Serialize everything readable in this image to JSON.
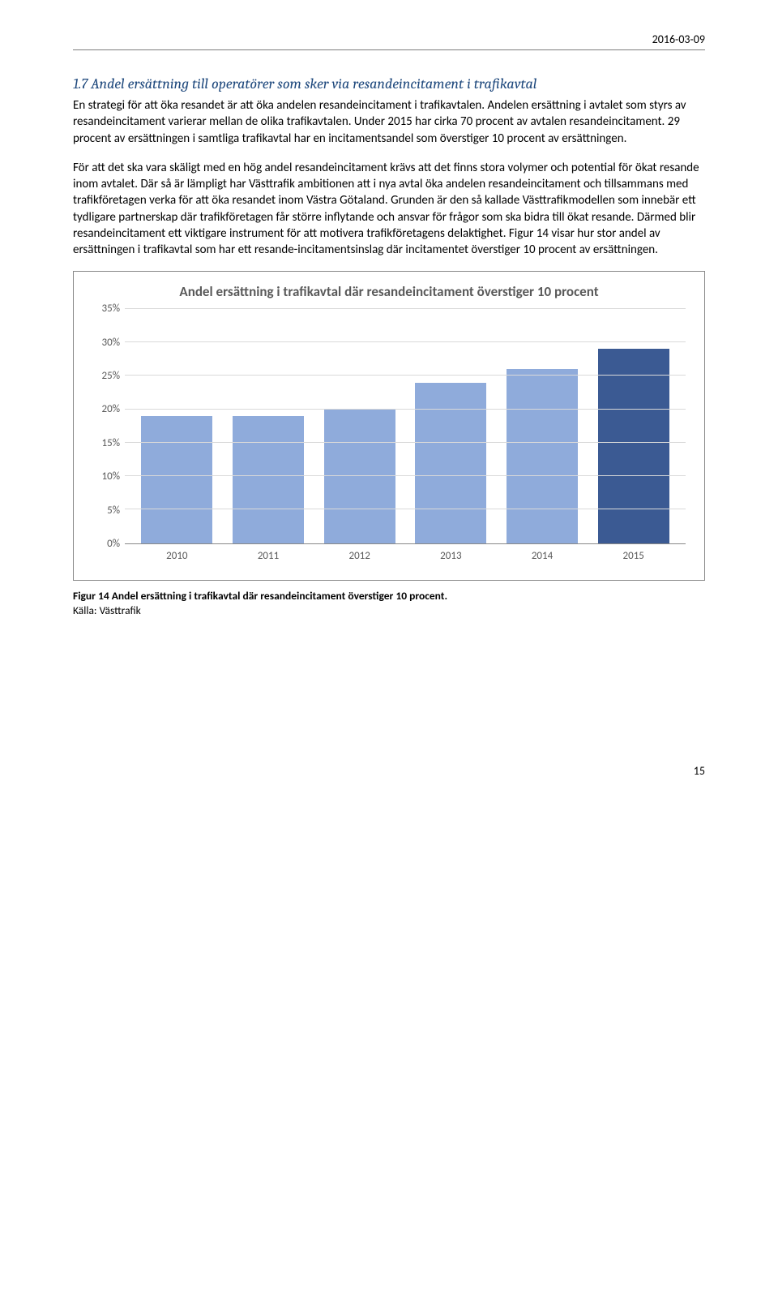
{
  "header": {
    "date": "2016-03-09"
  },
  "section": {
    "heading": "1.7 Andel ersättning till operatörer som sker via resandeincitament i trafikavtal",
    "paragraph1": "En strategi för att öka resandet är att öka andelen resandeincitament i trafikavtalen. Andelen ersättning i avtalet som styrs av resandeincitament varierar mellan de olika trafikavtalen. Under 2015 har cirka 70 procent av avtalen resandeincitament. 29 procent av ersättningen i samtliga trafikavtal har en incitamentsandel som överstiger 10 procent av ersättningen.",
    "paragraph2": "För att det ska vara skäligt med en hög andel resandeincitament krävs att det finns stora volymer och potential för ökat resande inom avtalet. Där så är lämpligt har Västtrafik ambitionen att i nya avtal öka andelen resandeincitament och tillsammans med trafikföretagen verka för att öka resandet inom Västra Götaland. Grunden är den så kallade Västtrafikmodellen som innebär ett tydligare partnerskap där trafikföretagen får större inflytande och ansvar för frågor som ska bidra till ökat resande. Därmed blir resandeincitament ett viktigare instrument för att motivera trafikföretagens delaktighet. Figur 14 visar hur stor andel av ersättningen i trafikavtal som har ett resande-incitamentsinslag där incitamentet överstiger 10 procent av ersättningen."
  },
  "chart": {
    "type": "bar",
    "title": "Andel ersättning i trafikavtal där resandeincitament överstiger 10 procent",
    "categories": [
      "2010",
      "2011",
      "2012",
      "2013",
      "2014",
      "2015"
    ],
    "values_percent": [
      19,
      19,
      20,
      24,
      26,
      29
    ],
    "bar_colors": [
      "#8fabdb",
      "#8fabdb",
      "#8fabdb",
      "#8fabdb",
      "#8fabdb",
      "#3b5a93"
    ],
    "y_ticks": [
      "0%",
      "5%",
      "10%",
      "15%",
      "20%",
      "25%",
      "30%",
      "35%"
    ],
    "y_max": 35,
    "grid_color": "#d9d9d9",
    "axis_label_color": "#595959",
    "title_color": "#595959",
    "border_color": "#888888",
    "background_color": "#ffffff"
  },
  "figure": {
    "caption": "Figur 14 Andel ersättning i trafikavtal där resandeincitament överstiger 10 procent.",
    "source": "Källa: Västtrafik"
  },
  "page": {
    "number": "15"
  }
}
